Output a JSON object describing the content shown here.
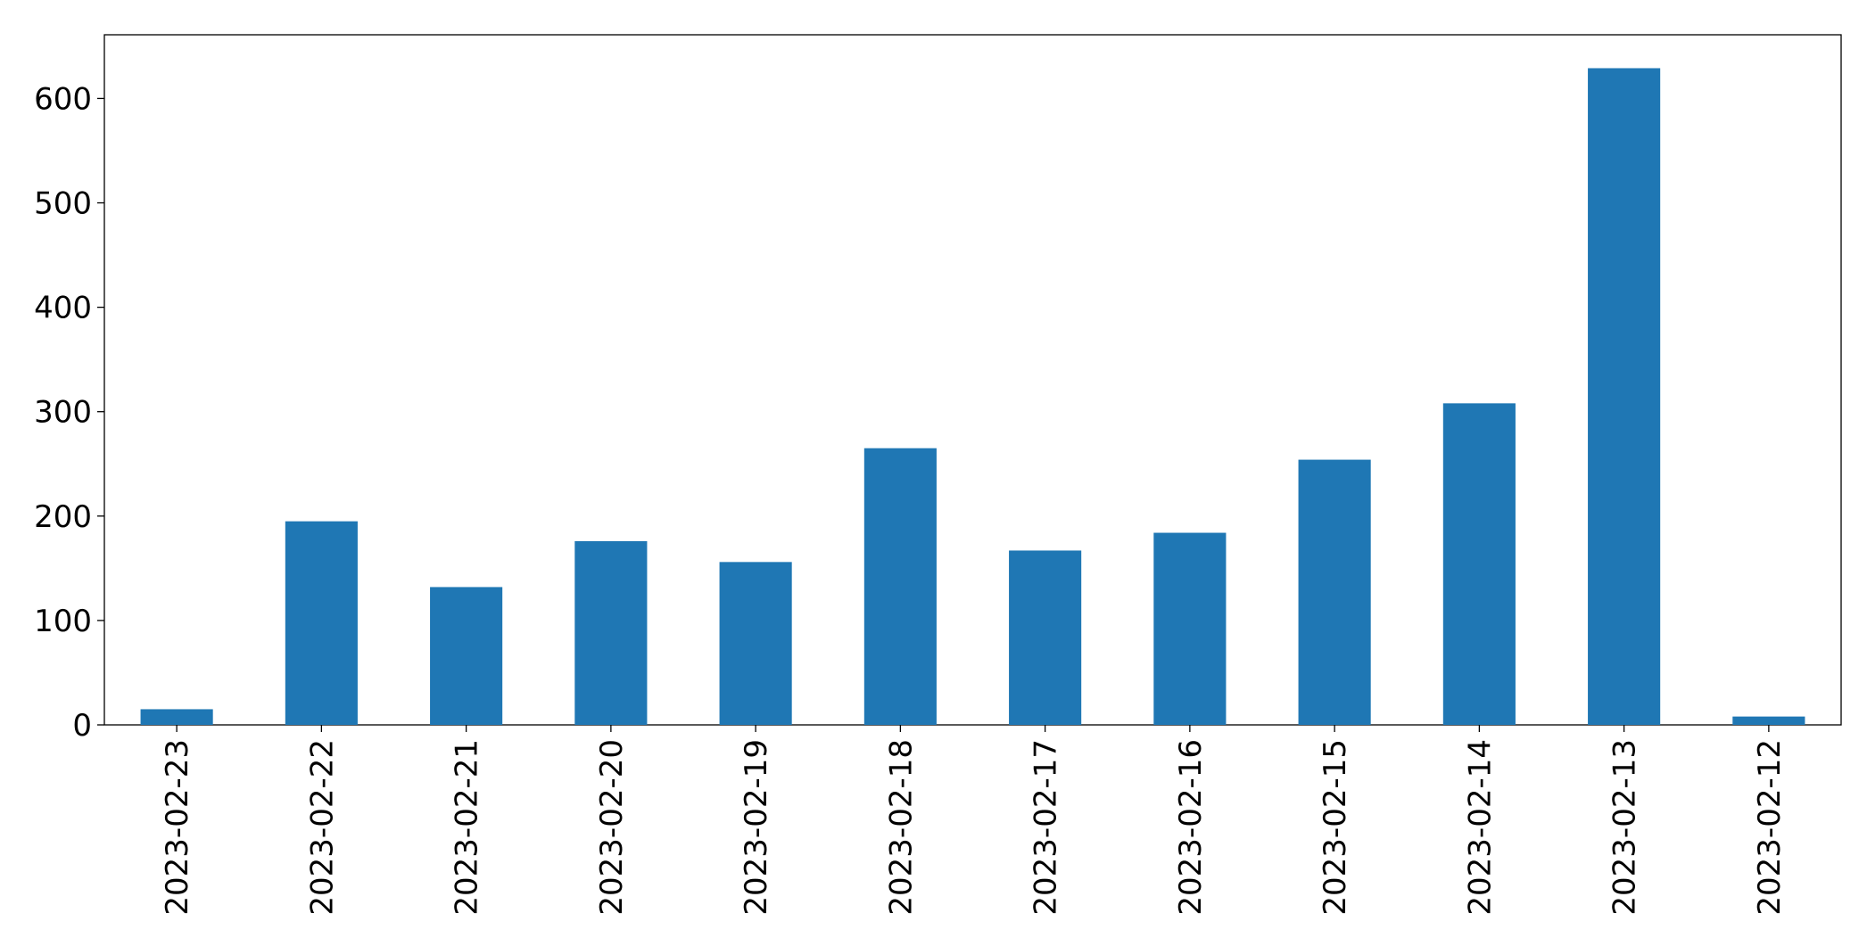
{
  "chart_data": {
    "type": "bar",
    "categories": [
      "2023-02-23",
      "2023-02-22",
      "2023-02-21",
      "2023-02-20",
      "2023-02-19",
      "2023-02-18",
      "2023-02-17",
      "2023-02-16",
      "2023-02-15",
      "2023-02-14",
      "2023-02-13",
      "2023-02-12"
    ],
    "values": [
      15,
      195,
      132,
      176,
      156,
      265,
      167,
      184,
      254,
      308,
      629,
      8
    ],
    "color": "#1f77b4",
    "ylim": [
      0,
      661
    ],
    "yticks": [
      0,
      100,
      200,
      300,
      400,
      500,
      600
    ],
    "grid": false
  }
}
